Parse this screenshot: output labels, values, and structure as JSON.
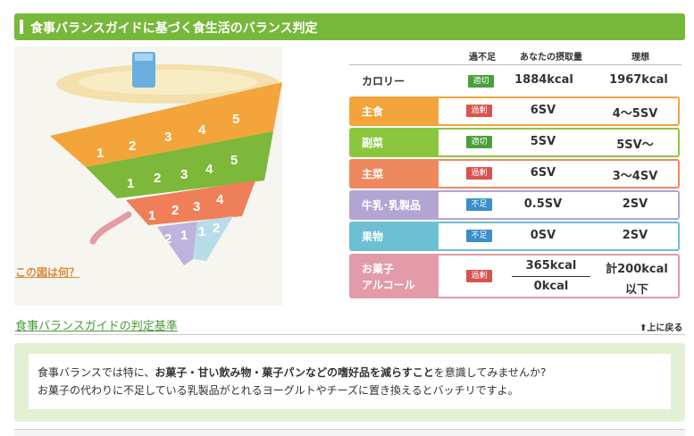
{
  "header": {
    "title": "食事バランスガイドに基づく食生活のバランス判定"
  },
  "figure": {
    "link": "この図は何？",
    "tier_numbers": {
      "grain": [
        "1",
        "2",
        "3",
        "4",
        "5"
      ],
      "vegetable": [
        "1",
        "2",
        "3",
        "4",
        "5"
      ],
      "main": [
        "1",
        "2",
        "3",
        "4"
      ],
      "milk": [
        "2",
        "1"
      ],
      "fruit": [
        "1",
        "2"
      ]
    }
  },
  "table": {
    "columns": {
      "status": "過不足",
      "intake": "あなたの摂取量",
      "ideal": "理想"
    },
    "calorie": {
      "label": "カロリー",
      "status": "適切",
      "intake": "1884kcal",
      "ideal": "1967kcal"
    },
    "rows": [
      {
        "label": "主食",
        "status": "過剰",
        "intake": "6SV",
        "ideal": "4〜5SV",
        "color": "#f3a43a"
      },
      {
        "label": "副菜",
        "status": "適切",
        "intake": "5SV",
        "ideal": "5SV〜",
        "color": "#8cc63f"
      },
      {
        "label": "主菜",
        "status": "過剰",
        "intake": "6SV",
        "ideal": "3〜4SV",
        "color": "#f0885e"
      },
      {
        "label": "牛乳･乳製品",
        "status": "不足",
        "intake": "0.5SV",
        "ideal": "2SV",
        "color": "#b3a5d3"
      },
      {
        "label": "果物",
        "status": "不足",
        "intake": "0SV",
        "ideal": "2SV",
        "color": "#6cc0d4"
      }
    ],
    "sweets": {
      "label_line1": "お菓子",
      "label_line2": "アルコール",
      "status": "過剰",
      "intake_top": "365kcal",
      "intake_bottom": "0kcal",
      "ideal_top": "計200kcal",
      "ideal_bottom": "以下",
      "color": "#e39aa9"
    }
  },
  "standards_link": "食事バランスガイドの判定基準",
  "back_to_top": "上に戻る",
  "advice": {
    "line1_pre": "食事バランスでは特に、",
    "line1_bold": "お菓子・甘い飲み物・菓子パンなどの嗜好品を減らすこと",
    "line1_post": "を意識してみませんか?",
    "line2": "お菓子の代わりに不足している乳製品がとれるヨーグルトやチーズに置き換えるとバッチリですよ。"
  },
  "colors": {
    "accent": "#77b83a",
    "ok": "#4a9f3a",
    "over": "#d9534f",
    "under": "#3a8ec9"
  }
}
